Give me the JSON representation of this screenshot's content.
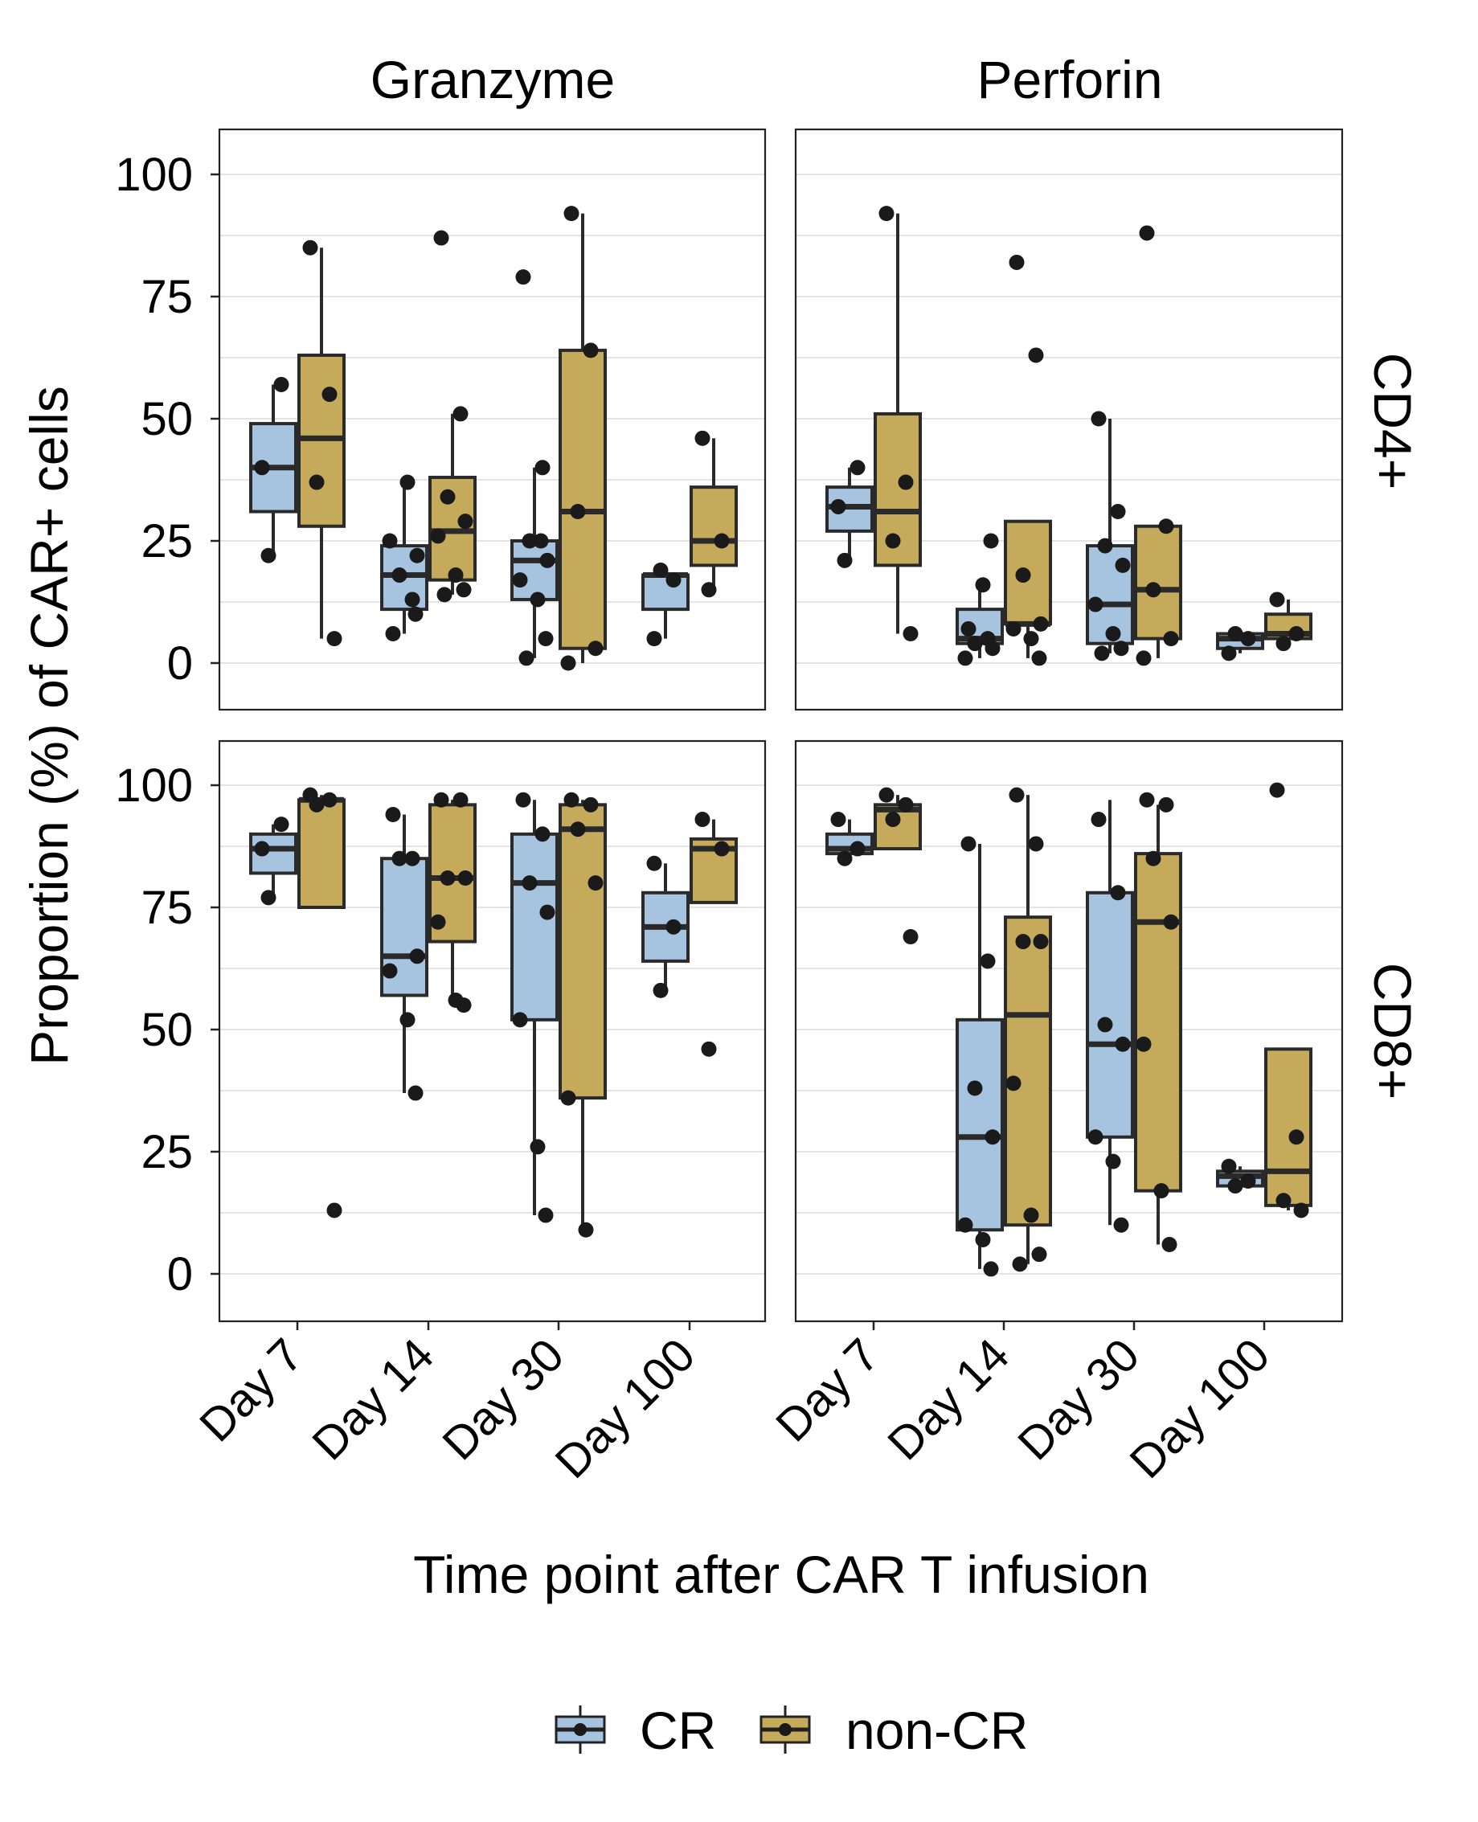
{
  "chart_data": {
    "type": "boxplot",
    "facet_columns": [
      "Granzyme",
      "Perforin"
    ],
    "facet_rows": [
      "CD4+",
      "CD8+"
    ],
    "categories": [
      "Day 7",
      "Day 14",
      "Day 30",
      "Day 100"
    ],
    "xlabel": "Time point after CAR T infusion",
    "ylabel": "Proportion (%) of CAR+ cells",
    "ylim": [
      -8,
      110
    ],
    "yticks": [
      "0",
      "25",
      "50",
      "75",
      "100"
    ],
    "grid": true,
    "legend_position": "bottom",
    "series": [
      {
        "name": "CR",
        "color": "#a6c4e0"
      },
      {
        "name": "non-CR",
        "color": "#c4aa5a"
      }
    ],
    "panels": [
      {
        "facet_col": "Granzyme",
        "facet_row": "CD4+",
        "groups": [
          {
            "category": "Day 7",
            "series": "CR",
            "whisker_low": 22,
            "q1": 31,
            "median": 40,
            "q3": 49,
            "whisker_high": 57,
            "points": [
              40,
              57,
              22
            ]
          },
          {
            "category": "Day 7",
            "series": "non-CR",
            "whisker_low": 5,
            "q1": 28,
            "median": 46,
            "q3": 63,
            "whisker_high": 85,
            "points": [
              85,
              55,
              37,
              5
            ]
          },
          {
            "category": "Day 14",
            "series": "CR",
            "whisker_low": 6,
            "q1": 11,
            "median": 18,
            "q3": 24,
            "whisker_high": 37,
            "points": [
              6,
              13,
              18,
              22,
              25,
              37,
              10
            ]
          },
          {
            "category": "Day 14",
            "series": "non-CR",
            "whisker_low": 14,
            "q1": 17,
            "median": 27,
            "q3": 38,
            "whisker_high": 51,
            "points": [
              87,
              51,
              34,
              29,
              26,
              18,
              15,
              14
            ]
          },
          {
            "category": "Day 30",
            "series": "CR",
            "whisker_low": 1,
            "q1": 13,
            "median": 21,
            "q3": 25,
            "whisker_high": 40,
            "points": [
              79,
              40,
              25,
              21,
              17,
              13,
              5,
              1,
              25
            ]
          },
          {
            "category": "Day 30",
            "series": "non-CR",
            "whisker_low": 0,
            "q1": 3,
            "median": 31,
            "q3": 64,
            "whisker_high": 92,
            "points": [
              92,
              64,
              31,
              3,
              0
            ]
          },
          {
            "category": "Day 100",
            "series": "CR",
            "whisker_low": 5,
            "q1": 11,
            "median": 18,
            "q3": 18,
            "whisker_high": 19,
            "points": [
              5,
              17,
              19
            ]
          },
          {
            "category": "Day 100",
            "series": "non-CR",
            "whisker_low": 15,
            "q1": 20,
            "median": 25,
            "q3": 36,
            "whisker_high": 46,
            "points": [
              46,
              25,
              15
            ]
          }
        ]
      },
      {
        "facet_col": "Perforin",
        "facet_row": "CD4+",
        "groups": [
          {
            "category": "Day 7",
            "series": "CR",
            "whisker_low": 21,
            "q1": 27,
            "median": 32,
            "q3": 36,
            "whisker_high": 40,
            "points": [
              32,
              40,
              21
            ]
          },
          {
            "category": "Day 7",
            "series": "non-CR",
            "whisker_low": 6,
            "q1": 20,
            "median": 31,
            "q3": 51,
            "whisker_high": 92,
            "points": [
              92,
              37,
              25,
              6
            ]
          },
          {
            "category": "Day 14",
            "series": "CR",
            "whisker_low": 1,
            "q1": 4,
            "median": 5,
            "q3": 11,
            "whisker_high": 16,
            "points": [
              7,
              5,
              4,
              3,
              1,
              16,
              25
            ]
          },
          {
            "category": "Day 14",
            "series": "non-CR",
            "whisker_low": 1,
            "q1": 8,
            "median": 8,
            "q3": 29,
            "whisker_high": 29,
            "points": [
              82,
              63,
              18,
              8,
              7,
              5,
              1
            ]
          },
          {
            "category": "Day 30",
            "series": "CR",
            "whisker_low": 2,
            "q1": 4,
            "median": 12,
            "q3": 24,
            "whisker_high": 50,
            "points": [
              50,
              31,
              24,
              20,
              12,
              6,
              3,
              2
            ]
          },
          {
            "category": "Day 30",
            "series": "non-CR",
            "whisker_low": 1,
            "q1": 5,
            "median": 15,
            "q3": 28,
            "whisker_high": 28,
            "points": [
              88,
              28,
              15,
              5,
              1
            ]
          },
          {
            "category": "Day 100",
            "series": "CR",
            "whisker_low": 2,
            "q1": 3,
            "median": 5,
            "q3": 6,
            "whisker_high": 6,
            "points": [
              2,
              5,
              6
            ]
          },
          {
            "category": "Day 100",
            "series": "non-CR",
            "whisker_low": 4,
            "q1": 5,
            "median": 6,
            "q3": 10,
            "whisker_high": 13,
            "points": [
              13,
              6,
              4
            ]
          }
        ]
      },
      {
        "facet_col": "Granzyme",
        "facet_row": "CD8+",
        "groups": [
          {
            "category": "Day 7",
            "series": "CR",
            "whisker_low": 77,
            "q1": 82,
            "median": 87,
            "q3": 90,
            "whisker_high": 92,
            "points": [
              87,
              92,
              77
            ]
          },
          {
            "category": "Day 7",
            "series": "non-CR",
            "whisker_low": 75,
            "q1": 75,
            "median": 97,
            "q3": 97,
            "whisker_high": 98,
            "points": [
              98,
              97,
              96,
              13
            ]
          },
          {
            "category": "Day 14",
            "series": "CR",
            "whisker_low": 37,
            "q1": 57,
            "median": 65,
            "q3": 85,
            "whisker_high": 94,
            "points": [
              94,
              85,
              85,
              65,
              62,
              52,
              37
            ]
          },
          {
            "category": "Day 14",
            "series": "non-CR",
            "whisker_low": 56,
            "q1": 68,
            "median": 81,
            "q3": 96,
            "whisker_high": 97,
            "points": [
              97,
              97,
              81,
              81,
              72,
              56,
              55
            ]
          },
          {
            "category": "Day 30",
            "series": "CR",
            "whisker_low": 12,
            "q1": 52,
            "median": 80,
            "q3": 90,
            "whisker_high": 97,
            "points": [
              97,
              90,
              80,
              74,
              52,
              26,
              12
            ]
          },
          {
            "category": "Day 30",
            "series": "non-CR",
            "whisker_low": 9,
            "q1": 36,
            "median": 91,
            "q3": 96,
            "whisker_high": 97,
            "points": [
              97,
              96,
              91,
              80,
              36,
              9
            ]
          },
          {
            "category": "Day 100",
            "series": "CR",
            "whisker_low": 58,
            "q1": 64,
            "median": 71,
            "q3": 78,
            "whisker_high": 84,
            "points": [
              84,
              71,
              58
            ]
          },
          {
            "category": "Day 100",
            "series": "non-CR",
            "whisker_low": 76,
            "q1": 76,
            "median": 87,
            "q3": 89,
            "whisker_high": 93,
            "points": [
              93,
              87,
              46
            ]
          }
        ]
      },
      {
        "facet_col": "Perforin",
        "facet_row": "CD8+",
        "groups": [
          {
            "category": "Day 7",
            "series": "CR",
            "whisker_low": 86,
            "q1": 86,
            "median": 87,
            "q3": 90,
            "whisker_high": 93,
            "points": [
              93,
              87,
              85
            ]
          },
          {
            "category": "Day 7",
            "series": "non-CR",
            "whisker_low": 87,
            "q1": 87,
            "median": 95,
            "q3": 96,
            "whisker_high": 98,
            "points": [
              98,
              96,
              93,
              69
            ]
          },
          {
            "category": "Day 14",
            "series": "CR",
            "whisker_low": 1,
            "q1": 9,
            "median": 28,
            "q3": 52,
            "whisker_high": 88,
            "points": [
              88,
              64,
              38,
              28,
              10,
              7,
              1
            ]
          },
          {
            "category": "Day 14",
            "series": "non-CR",
            "whisker_low": 2,
            "q1": 10,
            "median": 53,
            "q3": 73,
            "whisker_high": 98,
            "points": [
              98,
              88,
              68,
              68,
              39,
              12,
              4,
              2
            ]
          },
          {
            "category": "Day 30",
            "series": "CR",
            "whisker_low": 10,
            "q1": 28,
            "median": 47,
            "q3": 78,
            "whisker_high": 97,
            "points": [
              93,
              78,
              51,
              47,
              28,
              23,
              10
            ]
          },
          {
            "category": "Day 30",
            "series": "non-CR",
            "whisker_low": 6,
            "q1": 17,
            "median": 72,
            "q3": 86,
            "whisker_high": 96,
            "points": [
              97,
              96,
              85,
              72,
              47,
              17,
              6
            ]
          },
          {
            "category": "Day 100",
            "series": "CR",
            "whisker_low": 18,
            "q1": 18,
            "median": 20,
            "q3": 21,
            "whisker_high": 22,
            "points": [
              22,
              19,
              18
            ]
          },
          {
            "category": "Day 100",
            "series": "non-CR",
            "whisker_low": 13,
            "q1": 14,
            "median": 21,
            "q3": 46,
            "whisker_high": 46,
            "points": [
              99,
              28,
              15,
              13
            ]
          }
        ]
      }
    ]
  }
}
